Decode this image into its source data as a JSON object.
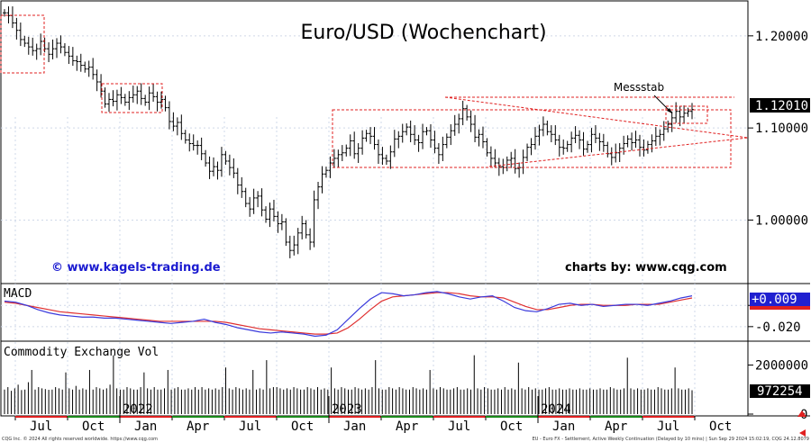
{
  "chart_data": {
    "type": "ohlc",
    "title": "Euro/USD (Wochenchart)",
    "website_left": "© www.kagels-trading.de",
    "website_right": "charts by: www.cqg.com",
    "annotation": "Messstab",
    "price_axis": {
      "ylim": [
        0.933,
        1.236
      ],
      "ticks": [
        {
          "v": 1.2,
          "label": "1.20000"
        },
        {
          "v": 1.1,
          "label": "1.10000"
        },
        {
          "v": 1.0,
          "label": "1.00000"
        }
      ],
      "last_value": 1.1201,
      "last_label": "1.12010"
    },
    "price_closes": [
      1.225,
      1.222,
      1.214,
      1.206,
      1.196,
      1.192,
      1.188,
      1.184,
      1.186,
      1.194,
      1.186,
      1.18,
      1.186,
      1.192,
      1.188,
      1.182,
      1.178,
      1.173,
      1.172,
      1.168,
      1.164,
      1.166,
      1.158,
      1.15,
      1.14,
      1.126,
      1.131,
      1.129,
      1.136,
      1.133,
      1.128,
      1.133,
      1.136,
      1.14,
      1.132,
      1.128,
      1.138,
      1.134,
      1.128,
      1.131,
      1.122,
      1.107,
      1.102,
      1.106,
      1.094,
      1.087,
      1.083,
      1.081,
      1.081,
      1.072,
      1.062,
      1.053,
      1.058,
      1.054,
      1.071,
      1.064,
      1.057,
      1.051,
      1.038,
      1.031,
      1.018,
      1.012,
      1.024,
      1.026,
      1.011,
      1.001,
      1.012,
      1.004,
      0.996,
      0.998,
      0.976,
      0.967,
      0.973,
      0.986,
      0.996,
      0.984,
      0.976,
      1.022,
      1.036,
      1.05,
      1.054,
      1.062,
      1.067,
      1.071,
      1.073,
      1.078,
      1.086,
      1.072,
      1.078,
      1.089,
      1.094,
      1.091,
      1.082,
      1.071,
      1.067,
      1.064,
      1.074,
      1.088,
      1.091,
      1.096,
      1.101,
      1.093,
      1.087,
      1.084,
      1.096,
      1.097,
      1.087,
      1.078,
      1.071,
      1.082,
      1.09,
      1.097,
      1.104,
      1.11,
      1.121,
      1.112,
      1.104,
      1.09,
      1.093,
      1.085,
      1.073,
      1.067,
      1.062,
      1.058,
      1.057,
      1.065,
      1.067,
      1.056,
      1.057,
      1.068,
      1.079,
      1.082,
      1.091,
      1.098,
      1.104,
      1.096,
      1.093,
      1.087,
      1.079,
      1.078,
      1.082,
      1.089,
      1.092,
      1.087,
      1.077,
      1.082,
      1.093,
      1.089,
      1.085,
      1.081,
      1.072,
      1.068,
      1.073,
      1.078,
      1.083,
      1.088,
      1.084,
      1.087,
      1.079,
      1.076,
      1.082,
      1.086,
      1.091,
      1.093,
      1.099,
      1.104,
      1.111,
      1.118,
      1.112,
      1.116,
      1.118,
      1.1201
    ],
    "macd": {
      "ylim": [
        -0.032,
        0.018
      ],
      "ticks": [
        {
          "v": 0.0,
          "label": "0.000"
        },
        {
          "v": -0.02,
          "label": "-0.020"
        }
      ],
      "last_label": "+0.009",
      "values": [
        0.004,
        0.003,
        0.0,
        -0.004,
        -0.007,
        -0.009,
        -0.01,
        -0.011,
        -0.011,
        -0.012,
        -0.012,
        -0.013,
        -0.014,
        -0.015,
        -0.016,
        -0.017,
        -0.016,
        -0.015,
        -0.013,
        -0.016,
        -0.018,
        -0.021,
        -0.023,
        -0.025,
        -0.026,
        -0.025,
        -0.026,
        -0.027,
        -0.029,
        -0.028,
        -0.023,
        -0.013,
        -0.003,
        0.006,
        0.012,
        0.011,
        0.009,
        0.01,
        0.012,
        0.013,
        0.011,
        0.008,
        0.006,
        0.008,
        0.009,
        0.004,
        -0.002,
        -0.005,
        -0.006,
        -0.003,
        0.001,
        0.002,
        0.0,
        0.001,
        -0.001,
        0.0,
        0.001,
        0.001,
        0.0,
        0.002,
        0.004,
        0.007,
        0.009
      ],
      "signal": [
        0.003,
        0.002,
        0.0,
        -0.002,
        -0.004,
        -0.006,
        -0.007,
        -0.008,
        -0.009,
        -0.01,
        -0.011,
        -0.012,
        -0.013,
        -0.014,
        -0.015,
        -0.015,
        -0.015,
        -0.015,
        -0.015,
        -0.015,
        -0.016,
        -0.018,
        -0.02,
        -0.022,
        -0.023,
        -0.024,
        -0.025,
        -0.026,
        -0.027,
        -0.027,
        -0.026,
        -0.021,
        -0.013,
        -0.004,
        0.004,
        0.008,
        0.009,
        0.01,
        0.011,
        0.012,
        0.012,
        0.011,
        0.009,
        0.008,
        0.008,
        0.007,
        0.003,
        -0.001,
        -0.004,
        -0.004,
        -0.002,
        0.0,
        0.001,
        0.001,
        0.0,
        0.0,
        0.0,
        0.001,
        0.001,
        0.001,
        0.003,
        0.005,
        0.007
      ]
    },
    "volume": {
      "title": "Commodity Exchange Vol",
      "ylim": [
        0,
        2900000
      ],
      "ticks": [
        {
          "v": 2000000,
          "label": "2000000"
        },
        {
          "v": 0,
          "label": "0"
        }
      ],
      "last_label": "972254",
      "values": [
        1000000,
        1100000,
        950000,
        1050000,
        1200000,
        980000,
        1000000,
        1300000,
        1800000,
        1000000,
        1100000,
        1050000,
        1020000,
        990000,
        1000000,
        1100000,
        1050000,
        1000000,
        1700000,
        1050000,
        1000000,
        1150000,
        1000000,
        1050000,
        1000000,
        1800000,
        1000000,
        1100000,
        1050000,
        1000000,
        1050000,
        1200000,
        2400000,
        1050000,
        1000000,
        1000000,
        1100000,
        1050000,
        1000000,
        1000000,
        1100000,
        1700000,
        1050000,
        1000000,
        1100000,
        1000000,
        1000000,
        1050000,
        1800000,
        1000000,
        1050000,
        1100000,
        1000000,
        1000000,
        1050000,
        1000000,
        1100000,
        1000000,
        1100000,
        1000000,
        1050000,
        1000000,
        1050000,
        1000000,
        1100000,
        1900000,
        1050000,
        1000000,
        1100000,
        1050000,
        1000000,
        1050000,
        1000000,
        1800000,
        1000000,
        1050000,
        1000000,
        2200000,
        1050000,
        1100000,
        1100000,
        1050000,
        1000000,
        1050000,
        1000000,
        1100000,
        1050000,
        1000000,
        1000000,
        1100000,
        1050000,
        1000000,
        1100000,
        1000000,
        1050000,
        1000000,
        1900000,
        1050000,
        1000000,
        1100000,
        1050000,
        1000000,
        1000000,
        1100000,
        1050000,
        1000000,
        1050000,
        1000000,
        1100000,
        2200000,
        1050000,
        1000000,
        1000000,
        1100000,
        1050000,
        1000000,
        1100000,
        1050000,
        1000000,
        1000000,
        1100000,
        1050000,
        1000000,
        1050000,
        1000000,
        1800000,
        1050000,
        1000000,
        1100000,
        1050000,
        1000000,
        1000000,
        1050000,
        1100000,
        1000000,
        1000000,
        1050000,
        1000000,
        2400000,
        1050000,
        1000000,
        1100000,
        1050000,
        1000000,
        1000000,
        1050000,
        1000000,
        1100000,
        1000000,
        1050000,
        1000000,
        2100000,
        1050000,
        1000000,
        1100000,
        1000000,
        1050000,
        1000000,
        1000000,
        1050000,
        1100000,
        1000000,
        1000000,
        1050000,
        1000000,
        1000000,
        1050000,
        1000000,
        1000000,
        1050000,
        1000000,
        1000000,
        1050000,
        1000000,
        1000000,
        1050000,
        1000000,
        1000000,
        1100000,
        1050000,
        1000000,
        1000000,
        1050000,
        2300000,
        1050000,
        1000000,
        1050000,
        1000000,
        1000000,
        1050000,
        1000000,
        1000000,
        1100000,
        1050000,
        1000000,
        1000000,
        1050000,
        1900000,
        1050000,
        1000000,
        1000000,
        1050000,
        972254
      ]
    },
    "x_axis": {
      "months": [
        "Jul",
        "Oct",
        "Jan",
        "Apr",
        "Jul",
        "Oct",
        "Jan",
        "Apr",
        "Jul",
        "Oct",
        "Jan",
        "Apr",
        "Jul",
        "Oct"
      ],
      "years": [
        "2022",
        "2023",
        "2024"
      ]
    },
    "colors": {
      "bars": "#000000",
      "box": "#e02020",
      "macd": "#3a3adc",
      "signal": "#e03030",
      "last_price_bg": "#000000",
      "macd_label_bg": "#2020d0"
    }
  },
  "footer": {
    "left": "CQG Inc. © 2024 All rights reserved worldwide. https://www.cqg.com",
    "right": "EU - Euro FX - Settlement, Active Weekly Continuation (Delayed by 10 mins) | Sun Sep 29 2024 15:02:19, CQG 24.12.8079"
  }
}
